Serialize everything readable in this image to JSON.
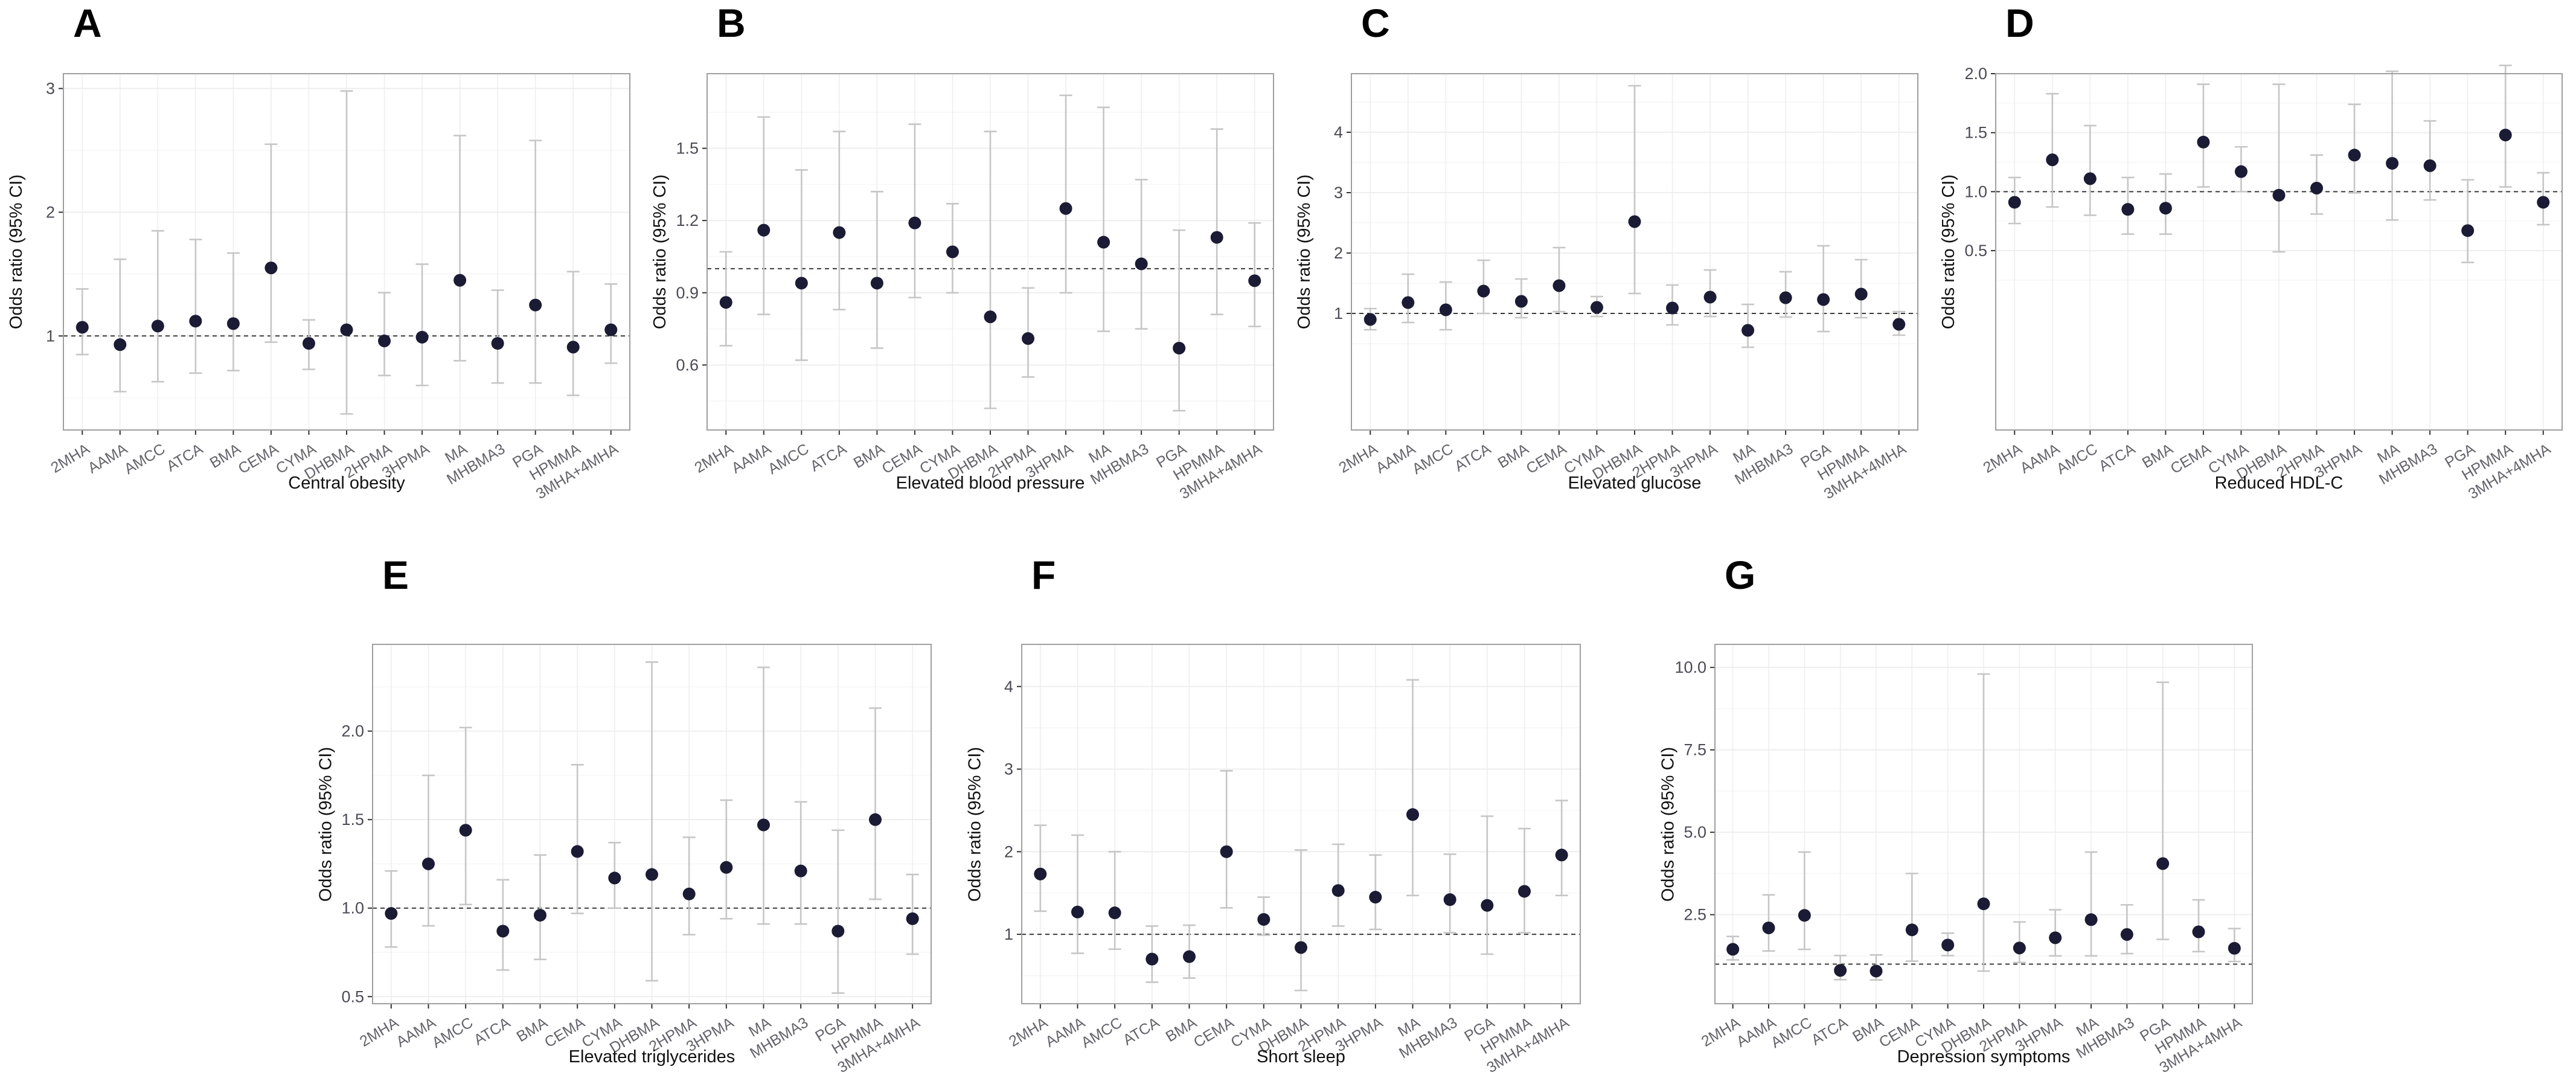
{
  "figure": {
    "ylab": "Odds ratio (95% CI)",
    "reference_line": 1.0,
    "categories": [
      "2MHA",
      "AAMA",
      "AMCC",
      "ATCA",
      "BMA",
      "CEMA",
      "CYMA",
      "DHBMA",
      "2HPMA",
      "3HPMA",
      "MA",
      "MHBMA3",
      "PGA",
      "HPMMA",
      "3MHA+4MHA"
    ],
    "colors": {
      "point": "#1b1b35",
      "error_bar": "#c6c6c6",
      "reference_line": "#3a3a3a",
      "frame": "#9f9f9f",
      "grid_major": "#ededed",
      "grid_minor": "#f6f6f6",
      "axis_text": "#4b4b57",
      "category_text": "#63636b",
      "title_text": "#111111"
    }
  },
  "chart_data": [
    {
      "type": "scatter",
      "panel": "A",
      "title": "Central obesity",
      "ylab": "Odds ratio (95% CI)",
      "ylim": [
        0.24,
        3.12
      ],
      "ytick_values": [
        1,
        2,
        3
      ],
      "ytick_labels": [
        "1",
        "2",
        "3"
      ],
      "minor_gridlines": [
        0.5,
        1.5,
        2.5
      ],
      "or": [
        1.07,
        0.93,
        1.08,
        1.12,
        1.1,
        1.55,
        0.94,
        1.05,
        0.96,
        0.99,
        1.45,
        0.94,
        1.25,
        0.91,
        1.05
      ],
      "lo": [
        0.85,
        0.55,
        0.63,
        0.7,
        0.72,
        0.95,
        0.73,
        0.37,
        0.68,
        0.6,
        0.8,
        0.62,
        0.62,
        0.52,
        0.78
      ],
      "hi": [
        1.38,
        1.62,
        1.85,
        1.78,
        1.67,
        2.55,
        1.13,
        2.98,
        1.35,
        1.58,
        2.62,
        1.37,
        2.58,
        1.52,
        1.42
      ]
    },
    {
      "type": "scatter",
      "panel": "B",
      "title": "Elevated blood pressure",
      "ylab": "Odds ratio (95% CI)",
      "ylim": [
        0.33,
        1.81
      ],
      "ytick_values": [
        0.6,
        0.9,
        1.2,
        1.5
      ],
      "ytick_labels": [
        "0.6",
        "0.9",
        "1.2",
        "1.5"
      ],
      "minor_gridlines": [
        0.45,
        0.75,
        1.05,
        1.35,
        1.65
      ],
      "or": [
        0.86,
        1.16,
        0.94,
        1.15,
        0.94,
        1.19,
        1.07,
        0.8,
        0.71,
        1.25,
        1.11,
        1.02,
        0.67,
        1.13,
        0.95
      ],
      "lo": [
        0.68,
        0.81,
        0.62,
        0.83,
        0.67,
        0.88,
        0.9,
        0.42,
        0.55,
        0.9,
        0.74,
        0.75,
        0.41,
        0.81,
        0.76
      ],
      "hi": [
        1.07,
        1.63,
        1.41,
        1.57,
        1.32,
        1.6,
        1.27,
        1.57,
        0.92,
        1.72,
        1.67,
        1.37,
        1.16,
        1.58,
        1.19
      ]
    },
    {
      "type": "scatter",
      "panel": "C",
      "title": "Elevated glucose",
      "ylab": "Odds ratio (95% CI)",
      "ylim": [
        -0.93,
        4.97
      ],
      "ytick_values": [
        1,
        2,
        3,
        4
      ],
      "ytick_labels": [
        "1",
        "2",
        "3",
        "4"
      ],
      "minor_gridlines": [
        0.5,
        1.5,
        2.5,
        3.5,
        4.5
      ],
      "or": [
        0.9,
        1.18,
        1.06,
        1.37,
        1.2,
        1.46,
        1.1,
        2.52,
        1.09,
        1.27,
        0.72,
        1.26,
        1.23,
        1.32,
        0.82
      ],
      "lo": [
        0.73,
        0.85,
        0.73,
        1.0,
        0.93,
        1.03,
        0.95,
        1.33,
        0.81,
        0.95,
        0.44,
        0.94,
        0.7,
        0.93,
        0.64
      ],
      "hi": [
        1.08,
        1.65,
        1.52,
        1.88,
        1.57,
        2.09,
        1.28,
        4.77,
        1.47,
        1.72,
        1.15,
        1.69,
        2.12,
        1.89,
        1.03
      ]
    },
    {
      "type": "scatter",
      "panel": "D",
      "title": "Reduced HDL-C",
      "ylab": "Odds ratio (95% CI)",
      "ylim": [
        -1.02,
        2.0
      ],
      "ytick_values": [
        0.5,
        1.0,
        1.5,
        2.0
      ],
      "ytick_labels": [
        "0.5",
        "1.0",
        "1.5",
        "2.0"
      ],
      "minor_gridlines": [
        0.25,
        0.75,
        1.25,
        1.75
      ],
      "or": [
        0.91,
        1.27,
        1.11,
        0.85,
        0.86,
        1.42,
        1.17,
        0.97,
        1.03,
        1.31,
        1.24,
        1.22,
        0.67,
        1.48,
        0.91
      ],
      "lo": [
        0.73,
        0.87,
        0.8,
        0.64,
        0.64,
        1.04,
        1.0,
        0.49,
        0.81,
        0.99,
        0.76,
        0.93,
        0.4,
        1.04,
        0.72
      ],
      "hi": [
        1.12,
        1.83,
        1.56,
        1.12,
        1.15,
        1.91,
        1.38,
        1.91,
        1.31,
        1.74,
        2.02,
        1.6,
        1.1,
        2.07,
        1.16
      ]
    },
    {
      "type": "scatter",
      "panel": "E",
      "title": "Elevated triglycerides",
      "ylab": "Odds ratio (95% CI)",
      "ylim": [
        0.46,
        2.49
      ],
      "ytick_values": [
        0.5,
        1.0,
        1.5,
        2.0
      ],
      "ytick_labels": [
        "0.5",
        "1.0",
        "1.5",
        "2.0"
      ],
      "minor_gridlines": [
        0.75,
        1.25,
        1.75,
        2.25
      ],
      "or": [
        0.97,
        1.25,
        1.44,
        0.87,
        0.96,
        1.32,
        1.17,
        1.19,
        1.08,
        1.23,
        1.47,
        1.21,
        0.87,
        1.5,
        0.94
      ],
      "lo": [
        0.78,
        0.9,
        1.02,
        0.65,
        0.71,
        0.97,
        1.0,
        0.59,
        0.85,
        0.94,
        0.91,
        0.91,
        0.52,
        1.05,
        0.74
      ],
      "hi": [
        1.21,
        1.75,
        2.02,
        1.16,
        1.3,
        1.81,
        1.37,
        2.39,
        1.4,
        1.61,
        2.36,
        1.6,
        1.44,
        2.13,
        1.19
      ]
    },
    {
      "type": "scatter",
      "panel": "F",
      "title": "Short sleep",
      "ylab": "Odds ratio (95% CI)",
      "ylim": [
        0.16,
        4.51
      ],
      "ytick_values": [
        1,
        2,
        3,
        4
      ],
      "ytick_labels": [
        "1",
        "2",
        "3",
        "4"
      ],
      "minor_gridlines": [
        0.5,
        1.5,
        2.5,
        3.5
      ],
      "or": [
        1.73,
        1.27,
        1.26,
        0.7,
        0.73,
        2.0,
        1.18,
        0.84,
        1.53,
        1.45,
        2.45,
        1.42,
        1.35,
        1.52,
        1.96
      ],
      "lo": [
        1.28,
        0.77,
        0.82,
        0.42,
        0.47,
        1.32,
        0.99,
        0.32,
        1.1,
        1.06,
        1.47,
        1.02,
        0.76,
        1.02,
        1.47
      ],
      "hi": [
        2.32,
        2.2,
        2.0,
        1.1,
        1.11,
        2.98,
        1.45,
        2.02,
        2.09,
        1.96,
        4.08,
        1.97,
        2.43,
        2.28,
        2.62
      ]
    },
    {
      "type": "scatter",
      "panel": "G",
      "title": "Depression symptoms",
      "ylab": "Odds ratio (95% CI)",
      "ylim": [
        -0.2,
        10.7
      ],
      "ytick_values": [
        2.5,
        5.0,
        7.5,
        10.0
      ],
      "ytick_labels": [
        "2.5",
        "5.0",
        "7.5",
        "10.0"
      ],
      "minor_gridlines": [
        1.25,
        3.75,
        6.25,
        8.75
      ],
      "or": [
        1.45,
        2.1,
        2.48,
        0.81,
        0.79,
        2.04,
        1.58,
        2.83,
        1.49,
        1.8,
        2.35,
        1.9,
        4.05,
        1.98,
        1.48
      ],
      "lo": [
        1.13,
        1.4,
        1.45,
        0.53,
        0.52,
        1.09,
        1.26,
        0.79,
        1.05,
        1.25,
        1.25,
        1.32,
        1.75,
        1.38,
        1.08
      ],
      "hi": [
        1.84,
        3.1,
        4.4,
        1.26,
        1.28,
        3.75,
        1.94,
        9.8,
        2.28,
        2.65,
        4.4,
        2.8,
        9.55,
        2.95,
        2.08
      ]
    }
  ]
}
